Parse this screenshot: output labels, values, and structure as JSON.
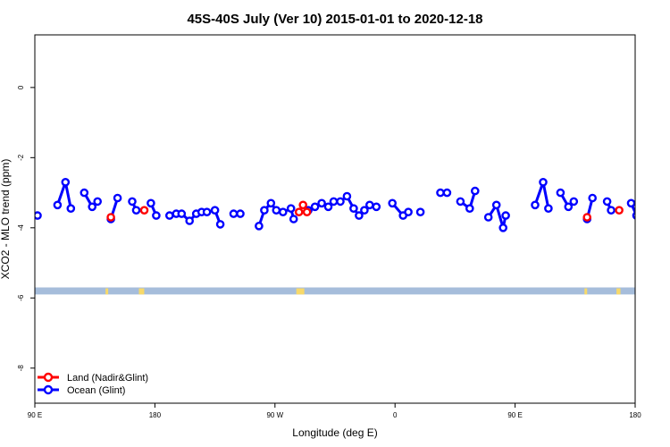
{
  "chart_data": {
    "type": "line",
    "title": "45S-40S July (Ver 10)   2015-01-01 to 2020-12-18",
    "xlabel": "Longitude (deg E)",
    "ylabel": "XCO2 - MLO trend (ppm)",
    "xlim": [
      90,
      540
    ],
    "ylim": [
      -9,
      1.5
    ],
    "x_ticks": [
      {
        "value": 90,
        "label": "90 E"
      },
      {
        "value": 180,
        "label": "180"
      },
      {
        "value": 270,
        "label": "90 W"
      },
      {
        "value": 360,
        "label": "0"
      },
      {
        "value": 450,
        "label": "90 E"
      },
      {
        "value": 540,
        "label": "180"
      }
    ],
    "y_ticks": [
      {
        "value": 0,
        "label": "0"
      },
      {
        "value": -2,
        "label": "-2"
      },
      {
        "value": -4,
        "label": "-4"
      },
      {
        "value": -6,
        "label": "-6"
      },
      {
        "value": -8,
        "label": "-8"
      }
    ],
    "legend": {
      "position": "bottom-left",
      "entries": [
        {
          "label": "Land (Nadir&Glint)",
          "color": "#ff0000"
        },
        {
          "label": "Ocean (Glint)",
          "color": "#0000ff"
        }
      ]
    },
    "map_band": {
      "ocean_color": "#a6bddb",
      "land_color": "#f7d96a",
      "y_range": [
        -5.9,
        -5.7
      ]
    },
    "series": [
      {
        "name": "Ocean (Glint)",
        "color": "#0000ff",
        "segments": [
          [
            [
              92,
              -3.65
            ]
          ],
          [
            [
              107,
              -3.35
            ],
            [
              113,
              -2.7
            ],
            [
              117,
              -3.45
            ]
          ],
          [
            [
              127,
              -3.0
            ],
            [
              133,
              -3.4
            ],
            [
              137,
              -3.25
            ]
          ],
          [
            [
              147,
              -3.75
            ],
            [
              152,
              -3.15
            ]
          ],
          [
            [
              163,
              -3.25
            ],
            [
              166,
              -3.5
            ]
          ],
          [
            [
              177,
              -3.3
            ],
            [
              181,
              -3.65
            ]
          ],
          [
            [
              191,
              -3.65
            ],
            [
              196,
              -3.6
            ],
            [
              200,
              -3.6
            ],
            [
              206,
              -3.8
            ],
            [
              211,
              -3.6
            ],
            [
              215,
              -3.55
            ],
            [
              219,
              -3.55
            ],
            [
              225,
              -3.5
            ],
            [
              229,
              -3.9
            ]
          ],
          [
            [
              239,
              -3.6
            ],
            [
              244,
              -3.6
            ]
          ],
          [
            [
              258,
              -3.95
            ],
            [
              262,
              -3.5
            ],
            [
              267,
              -3.3
            ],
            [
              271,
              -3.5
            ],
            [
              276,
              -3.55
            ],
            [
              282,
              -3.45
            ],
            [
              284,
              -3.75
            ]
          ],
          [
            [
              295,
              -3.5
            ],
            [
              300,
              -3.4
            ],
            [
              305,
              -3.3
            ],
            [
              310,
              -3.4
            ],
            [
              314,
              -3.25
            ],
            [
              319,
              -3.25
            ],
            [
              324,
              -3.1
            ],
            [
              329,
              -3.45
            ],
            [
              333,
              -3.65
            ],
            [
              337,
              -3.5
            ],
            [
              341,
              -3.35
            ],
            [
              346,
              -3.4
            ]
          ],
          [
            [
              358,
              -3.3
            ],
            [
              366,
              -3.65
            ],
            [
              370,
              -3.55
            ]
          ],
          [
            [
              379,
              -3.55
            ]
          ],
          [
            [
              394,
              -3.0
            ],
            [
              399,
              -3.0
            ]
          ],
          [
            [
              409,
              -3.25
            ],
            [
              416,
              -3.45
            ],
            [
              420,
              -2.95
            ]
          ],
          [
            [
              430,
              -3.7
            ],
            [
              436,
              -3.35
            ],
            [
              441,
              -4.0
            ],
            [
              443,
              -3.65
            ]
          ],
          [
            [
              465,
              -3.35
            ],
            [
              471,
              -2.7
            ],
            [
              475,
              -3.45
            ]
          ],
          [
            [
              484,
              -3.0
            ],
            [
              490,
              -3.4
            ],
            [
              494,
              -3.25
            ]
          ],
          [
            [
              504,
              -3.75
            ],
            [
              508,
              -3.15
            ]
          ],
          [
            [
              519,
              -3.25
            ],
            [
              522,
              -3.5
            ]
          ],
          [
            [
              537,
              -3.3
            ],
            [
              541,
              -3.65
            ]
          ]
        ]
      },
      {
        "name": "Land (Nadir&Glint)",
        "color": "#ff0000",
        "segments": [
          [
            [
              147,
              -3.7
            ]
          ],
          [
            [
              172,
              -3.5
            ]
          ],
          [
            [
              288,
              -3.55
            ],
            [
              291,
              -3.35
            ],
            [
              294,
              -3.55
            ]
          ],
          [
            [
              504,
              -3.7
            ]
          ],
          [
            [
              528,
              -3.5
            ]
          ]
        ]
      }
    ]
  }
}
